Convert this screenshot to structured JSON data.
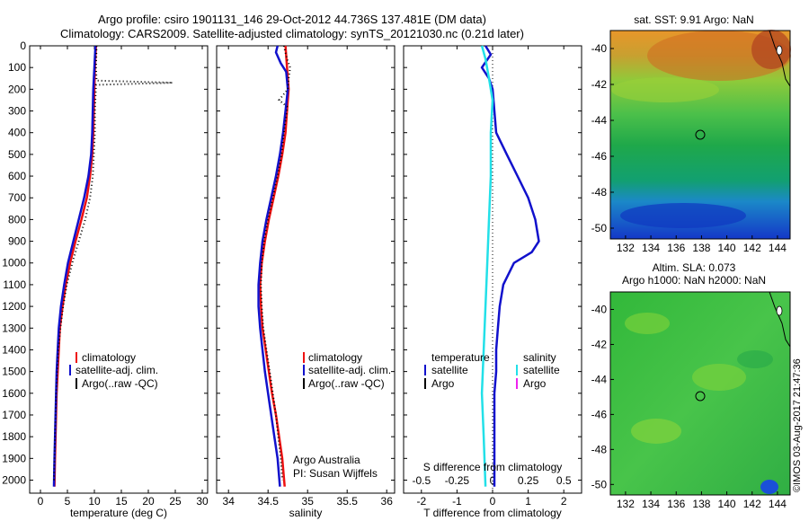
{
  "header": {
    "line1": "Argo profile: csiro 1901131_146 29-Oct-2012 44.736S 137.481E (DM data)",
    "line2": "Climatology: CARS2009. Satellite-adjusted climatology: synTS_20121030.nc (0.21d later)"
  },
  "colors": {
    "climatology": "#ee1111",
    "satellite": "#1111cc",
    "argo": "#000000",
    "sal_satellite": "#22e0e8",
    "sal_argo": "#ee22ee"
  },
  "chart_data": [
    {
      "type": "line",
      "id": "temperature",
      "xlabel": "temperature (deg C)",
      "xlim": [
        -2,
        31
      ],
      "ylim": [
        2060,
        0
      ],
      "xticks": [
        "0",
        "5",
        "10",
        "15",
        "20",
        "25",
        "30"
      ],
      "yticks": [
        "0",
        "100",
        "200",
        "300",
        "400",
        "500",
        "600",
        "700",
        "800",
        "900",
        "1000",
        "1100",
        "1200",
        "1300",
        "1400",
        "1500",
        "1600",
        "1700",
        "1800",
        "1900",
        "2000"
      ],
      "legend": [
        "climatology",
        "satellite-adj. clim.",
        "Argo(..raw -QC)"
      ],
      "series": [
        {
          "name": "climatology",
          "color": "#ee1111",
          "points": [
            [
              10.3,
              0
            ],
            [
              10.1,
              100
            ],
            [
              10.0,
              200
            ],
            [
              9.9,
              300
            ],
            [
              9.8,
              400
            ],
            [
              9.6,
              500
            ],
            [
              9.2,
              600
            ],
            [
              8.6,
              700
            ],
            [
              7.6,
              800
            ],
            [
              6.5,
              900
            ],
            [
              5.5,
              1000
            ],
            [
              4.7,
              1100
            ],
            [
              4.1,
              1200
            ],
            [
              3.6,
              1300
            ],
            [
              3.4,
              1400
            ],
            [
              3.2,
              1500
            ],
            [
              3.0,
              1600
            ],
            [
              2.9,
              1700
            ],
            [
              2.8,
              1800
            ],
            [
              2.7,
              1900
            ],
            [
              2.6,
              2030
            ]
          ]
        },
        {
          "name": "satellite-adj. clim.",
          "color": "#1111cc",
          "points": [
            [
              10.2,
              0
            ],
            [
              10.0,
              100
            ],
            [
              9.8,
              200
            ],
            [
              9.7,
              300
            ],
            [
              9.6,
              400
            ],
            [
              9.4,
              500
            ],
            [
              8.9,
              600
            ],
            [
              8.1,
              700
            ],
            [
              7.1,
              800
            ],
            [
              6.1,
              900
            ],
            [
              5.1,
              1000
            ],
            [
              4.4,
              1100
            ],
            [
              3.8,
              1200
            ],
            [
              3.4,
              1300
            ],
            [
              3.2,
              1400
            ],
            [
              3.0,
              1500
            ],
            [
              2.9,
              1600
            ],
            [
              2.8,
              1700
            ],
            [
              2.7,
              1800
            ],
            [
              2.6,
              1900
            ],
            [
              2.5,
              2030
            ]
          ]
        },
        {
          "name": "Argo(..raw -QC)",
          "color": "#000000",
          "dotted": true,
          "points": [
            [
              10.4,
              0
            ],
            [
              10.3,
              100
            ],
            [
              10.4,
              160
            ],
            [
              24.5,
              170
            ],
            [
              10.3,
              180
            ],
            [
              10.1,
              300
            ],
            [
              10.1,
              400
            ],
            [
              9.9,
              500
            ],
            [
              9.7,
              600
            ],
            [
              9.2,
              700
            ],
            [
              8.3,
              800
            ],
            [
              7.1,
              900
            ],
            [
              5.9,
              1000
            ],
            [
              4.9,
              1100
            ],
            [
              4.2,
              1200
            ],
            [
              3.7,
              1300
            ],
            [
              3.3,
              1400
            ],
            [
              3.1,
              1500
            ],
            [
              2.9,
              1600
            ],
            [
              2.8,
              1700
            ],
            [
              2.7,
              1800
            ],
            [
              2.6,
              1900
            ],
            [
              2.5,
              2000
            ]
          ]
        }
      ]
    },
    {
      "type": "line",
      "id": "salinity",
      "xlabel": "salinity",
      "xlim": [
        33.85,
        36.1
      ],
      "ylim": [
        2060,
        0
      ],
      "xticks": [
        "34",
        "34.5",
        "35",
        "35.5",
        "36"
      ],
      "legend": [
        "climatology",
        "satellite-adj. clim.",
        "Argo(..raw -QC)"
      ],
      "annotation": [
        "Argo Australia",
        "PI: Susan Wijffels"
      ],
      "series": [
        {
          "name": "climatology",
          "color": "#ee1111",
          "points": [
            [
              34.72,
              0
            ],
            [
              34.74,
              100
            ],
            [
              34.76,
              200
            ],
            [
              34.74,
              300
            ],
            [
              34.72,
              400
            ],
            [
              34.68,
              500
            ],
            [
              34.63,
              600
            ],
            [
              34.57,
              700
            ],
            [
              34.51,
              800
            ],
            [
              34.46,
              900
            ],
            [
              34.42,
              1000
            ],
            [
              34.4,
              1100
            ],
            [
              34.41,
              1200
            ],
            [
              34.43,
              1300
            ],
            [
              34.47,
              1400
            ],
            [
              34.51,
              1500
            ],
            [
              34.55,
              1600
            ],
            [
              34.6,
              1700
            ],
            [
              34.64,
              1800
            ],
            [
              34.68,
              1900
            ],
            [
              34.71,
              2030
            ]
          ]
        },
        {
          "name": "satellite-adj. clim.",
          "color": "#1111cc",
          "points": [
            [
              34.62,
              0
            ],
            [
              34.6,
              30
            ],
            [
              34.66,
              80
            ],
            [
              34.73,
              120
            ],
            [
              34.75,
              200
            ],
            [
              34.72,
              300
            ],
            [
              34.69,
              400
            ],
            [
              34.65,
              500
            ],
            [
              34.6,
              600
            ],
            [
              34.54,
              700
            ],
            [
              34.48,
              800
            ],
            [
              34.43,
              900
            ],
            [
              34.4,
              1000
            ],
            [
              34.38,
              1100
            ],
            [
              34.38,
              1200
            ],
            [
              34.4,
              1300
            ],
            [
              34.43,
              1400
            ],
            [
              34.46,
              1500
            ],
            [
              34.5,
              1600
            ],
            [
              34.54,
              1700
            ],
            [
              34.58,
              1800
            ],
            [
              34.62,
              1900
            ],
            [
              34.65,
              2030
            ]
          ]
        },
        {
          "name": "Argo(..raw -QC)",
          "color": "#000000",
          "dotted": true,
          "points": [
            [
              34.7,
              0
            ],
            [
              34.74,
              60
            ],
            [
              34.78,
              100
            ],
            [
              34.76,
              150
            ],
            [
              34.75,
              200
            ],
            [
              34.64,
              250
            ],
            [
              34.74,
              280
            ],
            [
              34.74,
              300
            ],
            [
              34.7,
              400
            ],
            [
              34.67,
              500
            ],
            [
              34.62,
              600
            ],
            [
              34.56,
              700
            ],
            [
              34.5,
              800
            ],
            [
              34.45,
              900
            ],
            [
              34.42,
              1000
            ],
            [
              34.41,
              1100
            ],
            [
              34.42,
              1200
            ],
            [
              34.44,
              1300
            ],
            [
              34.48,
              1400
            ],
            [
              34.52,
              1500
            ],
            [
              34.56,
              1600
            ],
            [
              34.6,
              1700
            ],
            [
              34.63,
              1800
            ],
            [
              34.66,
              1900
            ],
            [
              34.68,
              2000
            ]
          ]
        }
      ]
    },
    {
      "type": "line",
      "id": "difference",
      "xlabel": "T difference from climatology",
      "xlabel_top": "S difference from climatology",
      "xlim": [
        -2.5,
        2.5
      ],
      "ylim": [
        2060,
        0
      ],
      "xticks": [
        "-2",
        "-1",
        "0",
        "1",
        "2"
      ],
      "top_ticks": [
        "-0.5",
        "-0.25",
        "0",
        "0.25",
        "0.5"
      ],
      "legend_temperature": [
        "temperature",
        "satellite",
        "Argo"
      ],
      "legend_salinity": [
        "salinity",
        "satellite",
        "Argo"
      ],
      "series": [
        {
          "name": "temperature satellite",
          "color": "#1111cc",
          "points": [
            [
              -0.2,
              0
            ],
            [
              -0.05,
              40
            ],
            [
              -0.3,
              100
            ],
            [
              -0.1,
              150
            ],
            [
              0.0,
              200
            ],
            [
              0.05,
              300
            ],
            [
              0.1,
              400
            ],
            [
              0.4,
              500
            ],
            [
              0.7,
              600
            ],
            [
              1.0,
              700
            ],
            [
              1.2,
              800
            ],
            [
              1.3,
              900
            ],
            [
              1.1,
              950
            ],
            [
              0.6,
              1000
            ],
            [
              0.3,
              1100
            ],
            [
              0.2,
              1200
            ],
            [
              0.15,
              1300
            ],
            [
              0.1,
              1400
            ],
            [
              0.1,
              1500
            ],
            [
              0.05,
              1600
            ],
            [
              0.05,
              1700
            ],
            [
              0.05,
              1800
            ],
            [
              0.05,
              1900
            ],
            [
              0.05,
              2030
            ]
          ]
        },
        {
          "name": "salinity satellite",
          "color": "#22e0e8",
          "points": [
            [
              -0.3,
              0
            ],
            [
              -0.2,
              60
            ],
            [
              -0.1,
              150
            ],
            [
              0.0,
              250
            ],
            [
              -0.05,
              400
            ],
            [
              -0.05,
              600
            ],
            [
              -0.1,
              800
            ],
            [
              -0.15,
              1000
            ],
            [
              -0.2,
              1200
            ],
            [
              -0.25,
              1400
            ],
            [
              -0.3,
              1600
            ],
            [
              -0.25,
              1800
            ],
            [
              -0.2,
              2030
            ]
          ]
        }
      ]
    }
  ],
  "maps": {
    "sst": {
      "title": "sat. SST: 9.91  Argo: NaN",
      "yticks": [
        "-40",
        "-42",
        "-44",
        "-46",
        "-48",
        "-50"
      ],
      "xticks": [
        "132",
        "134",
        "136",
        "138",
        "140",
        "142",
        "144"
      ]
    },
    "sla": {
      "title1": "Altim. SLA: 0.073",
      "title2": "Argo h1000: NaN h2000: NaN",
      "yticks": [
        "-40",
        "-42",
        "-44",
        "-46",
        "-48",
        "-50"
      ],
      "xticks": [
        "132",
        "134",
        "136",
        "138",
        "140",
        "142",
        "144"
      ]
    }
  },
  "footer_stamp": "©IMOS 03-Aug-2017 21:47:36"
}
